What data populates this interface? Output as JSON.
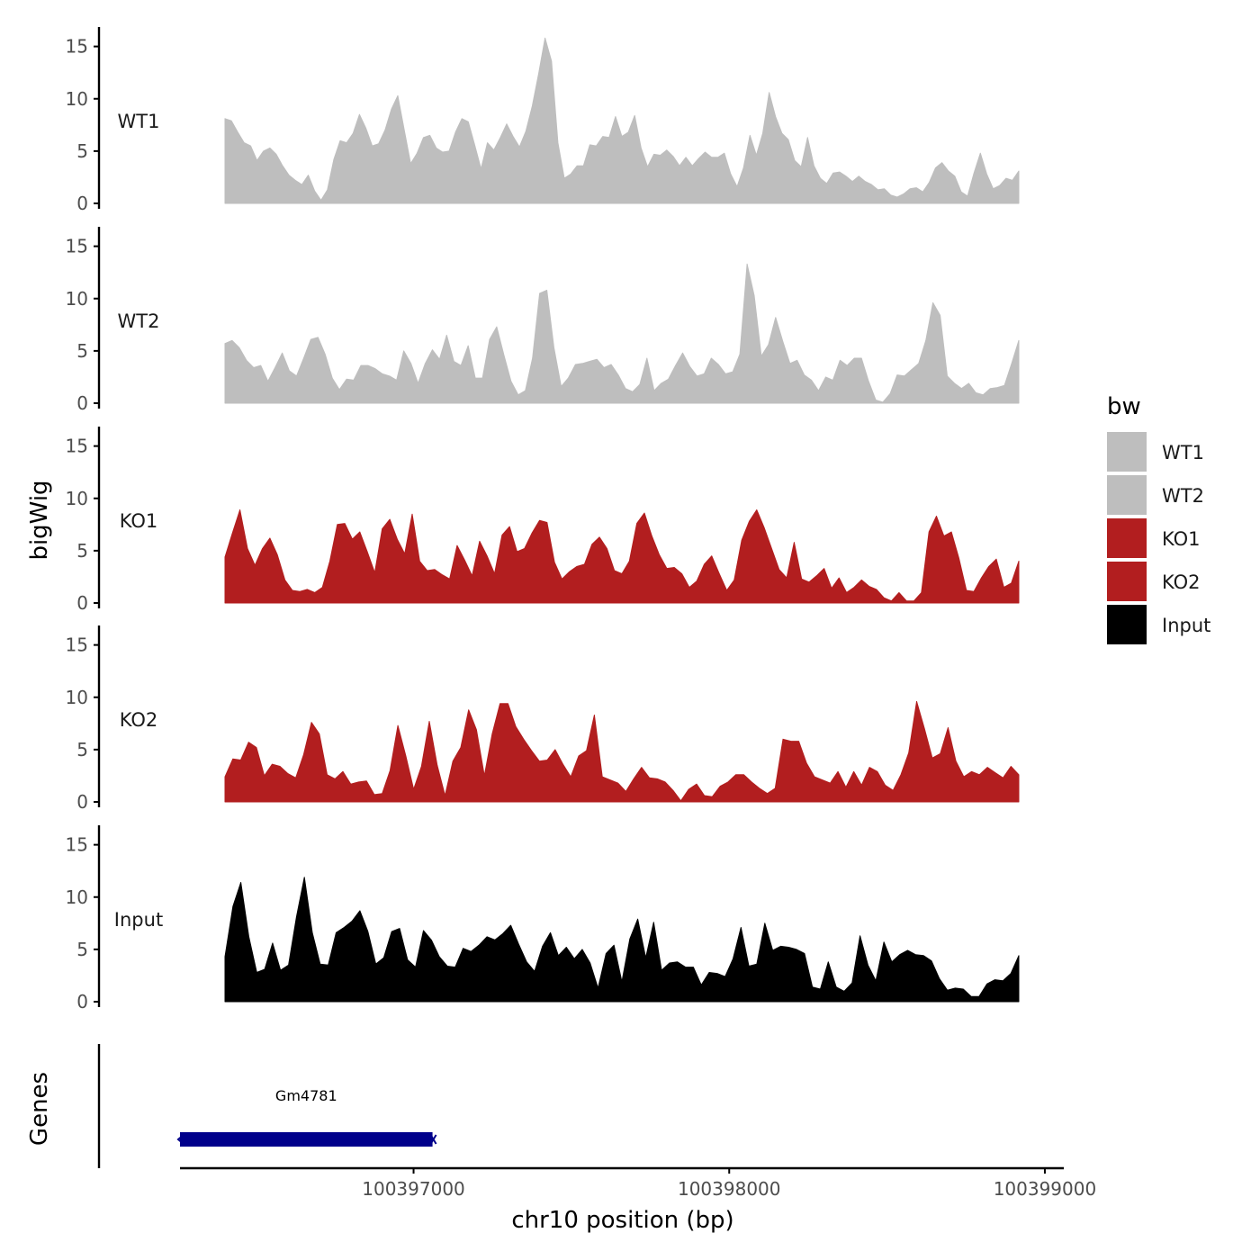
{
  "chart_data": {
    "type": "area",
    "ylabel": "bigWig",
    "xlabel": "chr10 position (bp)",
    "ylim": [
      0,
      16
    ],
    "yticks": [
      0,
      5,
      10,
      15
    ],
    "xlim": [
      100396260,
      100399060
    ],
    "xticks": [
      100397000,
      100398000,
      100399000
    ],
    "xtick_labels": [
      "100397000",
      "100398000",
      "100399000"
    ],
    "legend": {
      "title": "bw",
      "placement": "right",
      "entries": [
        {
          "label": "WT1",
          "color": "#bebebe"
        },
        {
          "label": "WT2",
          "color": "#bebebe"
        },
        {
          "label": "KO1",
          "color": "#b21e1f"
        },
        {
          "label": "KO2",
          "color": "#b21e1f"
        },
        {
          "label": "Input",
          "color": "#000000"
        }
      ]
    },
    "track_x_range": [
      100396700,
      100399440
    ],
    "series": [
      {
        "name": "WT1",
        "color": "#bebebe",
        "values": [
          8.1,
          7.9,
          6.8,
          5.8,
          5.5,
          4.1,
          5.0,
          5.3,
          4.7,
          3.6,
          2.7,
          2.2,
          1.8,
          2.7,
          1.2,
          0.3,
          1.3,
          4.2,
          6.0,
          5.8,
          6.7,
          8.5,
          7.2,
          5.5,
          5.7,
          7.0,
          9.0,
          10.3,
          7.0,
          3.8,
          4.8,
          6.3,
          6.5,
          5.3,
          4.9,
          5.0,
          6.8,
          8.1,
          7.8,
          5.6,
          3.3,
          5.8,
          5.1,
          6.3,
          7.6,
          6.4,
          5.4,
          6.9,
          9.3,
          12.4,
          15.8,
          13.6,
          5.8,
          2.4,
          2.8,
          3.6,
          3.6,
          5.6,
          5.5,
          6.4,
          6.3,
          8.3,
          6.4,
          6.8,
          8.4,
          5.3,
          3.5,
          4.7,
          4.6,
          5.1,
          4.5,
          3.6,
          4.4,
          3.6,
          4.3,
          4.9,
          4.4,
          4.4,
          4.8,
          2.8,
          1.6,
          3.4,
          6.5,
          4.6,
          6.7,
          10.6,
          8.3,
          6.7,
          6.1,
          4.1,
          3.5,
          6.3,
          3.6,
          2.4,
          1.9,
          2.9,
          3.0,
          2.6,
          2.1,
          2.6,
          2.1,
          1.8,
          1.3,
          1.4,
          0.8,
          0.6,
          0.9,
          1.4,
          1.5,
          1.1,
          2.0,
          3.4,
          3.9,
          3.1,
          2.6,
          1.1,
          0.7,
          2.9,
          4.8,
          2.8,
          1.4,
          1.7,
          2.4,
          2.2,
          3.1
        ]
      },
      {
        "name": "WT2",
        "color": "#bebebe",
        "values": [
          5.7,
          6.0,
          5.3,
          4.1,
          3.4,
          3.6,
          2.1,
          3.4,
          4.8,
          3.1,
          2.6,
          4.3,
          6.1,
          6.3,
          4.7,
          2.4,
          1.3,
          2.3,
          2.2,
          3.6,
          3.6,
          3.3,
          2.8,
          2.6,
          2.2,
          5.0,
          3.8,
          1.9,
          3.8,
          5.1,
          4.2,
          6.5,
          4.0,
          3.6,
          5.5,
          2.4,
          2.4,
          6.1,
          7.3,
          4.6,
          2.1,
          0.8,
          1.2,
          4.3,
          10.5,
          10.8,
          5.3,
          1.6,
          2.4,
          3.7,
          3.8,
          4.0,
          4.2,
          3.4,
          3.7,
          2.7,
          1.4,
          1.1,
          1.8,
          4.3,
          1.2,
          1.9,
          2.3,
          3.6,
          4.8,
          3.5,
          2.6,
          2.8,
          4.3,
          3.7,
          2.8,
          3.0,
          4.7,
          13.3,
          10.3,
          4.5,
          5.6,
          8.2,
          5.9,
          3.8,
          4.1,
          2.7,
          2.2,
          1.2,
          2.5,
          2.2,
          4.1,
          3.6,
          4.3,
          4.3,
          2.1,
          0.3,
          0.1,
          0.9,
          2.7,
          2.6,
          3.2,
          3.8,
          6.0,
          9.6,
          8.4,
          2.6,
          1.9,
          1.4,
          1.9,
          1.0,
          0.8,
          1.4,
          1.5,
          1.7,
          3.8,
          6.0
        ]
      },
      {
        "name": "KO1",
        "color": "#b21e1f",
        "values": [
          4.4,
          6.7,
          8.9,
          5.2,
          3.6,
          5.2,
          6.2,
          4.6,
          2.2,
          1.2,
          1.1,
          1.3,
          1.0,
          1.5,
          4.0,
          7.5,
          7.6,
          6.1,
          6.8,
          4.9,
          2.9,
          7.1,
          8.0,
          6.1,
          4.7,
          8.5,
          4.0,
          3.1,
          3.2,
          2.7,
          2.3,
          5.5,
          4.1,
          2.6,
          5.9,
          4.5,
          2.8,
          6.5,
          7.3,
          4.9,
          5.2,
          6.7,
          7.9,
          7.7,
          3.9,
          2.3,
          3.0,
          3.5,
          3.7,
          5.6,
          6.3,
          5.2,
          3.1,
          2.8,
          4.0,
          7.6,
          8.6,
          6.4,
          4.6,
          3.3,
          3.4,
          2.8,
          1.5,
          2.1,
          3.7,
          4.5,
          2.8,
          1.2,
          2.2,
          6.0,
          7.8,
          8.9,
          7.2,
          5.2,
          3.2,
          2.4,
          5.8,
          2.3,
          2.0,
          2.6,
          3.3,
          1.4,
          2.4,
          1.0,
          1.5,
          2.2,
          1.6,
          1.3,
          0.5,
          0.2,
          1.0,
          0.2,
          0.2,
          1.0,
          6.8,
          8.3,
          6.4,
          6.8,
          4.3,
          1.2,
          1.1,
          2.4,
          3.5,
          4.2,
          1.5,
          1.9,
          4.0
        ]
      },
      {
        "name": "KO2",
        "color": "#b21e1f",
        "values": [
          2.4,
          4.1,
          4.0,
          5.7,
          5.2,
          2.5,
          3.6,
          3.4,
          2.7,
          2.3,
          4.5,
          7.6,
          6.5,
          2.6,
          2.2,
          2.9,
          1.7,
          1.9,
          2.0,
          0.7,
          0.8,
          3.0,
          7.3,
          4.4,
          1.2,
          3.4,
          7.7,
          3.5,
          0.6,
          3.9,
          5.2,
          8.8,
          6.9,
          2.5,
          6.5,
          9.4,
          9.4,
          7.2,
          6.0,
          4.9,
          3.9,
          4.0,
          5.0,
          3.6,
          2.4,
          4.4,
          4.9,
          8.3,
          2.4,
          2.1,
          1.8,
          1.0,
          2.2,
          3.3,
          2.3,
          2.2,
          1.9,
          1.1,
          0.1,
          1.2,
          1.7,
          0.6,
          0.5,
          1.5,
          1.9,
          2.6,
          2.6,
          1.9,
          1.3,
          0.8,
          1.3,
          6.0,
          5.8,
          5.8,
          3.7,
          2.4,
          2.1,
          1.8,
          2.9,
          1.4,
          2.9,
          1.6,
          3.3,
          2.9,
          1.6,
          1.1,
          2.6,
          4.7,
          9.6,
          7.0,
          4.2,
          4.6,
          7.1,
          3.9,
          2.4,
          2.9,
          2.6,
          3.3,
          2.8,
          2.3,
          3.4,
          2.6
        ]
      },
      {
        "name": "Input",
        "color": "#000000",
        "values": [
          4.3,
          9.1,
          11.4,
          6.2,
          2.8,
          3.1,
          5.6,
          3.0,
          3.5,
          8.1,
          11.9,
          6.6,
          3.6,
          3.5,
          6.6,
          7.1,
          7.7,
          8.7,
          6.7,
          3.6,
          4.2,
          6.7,
          7.0,
          4.0,
          3.3,
          6.8,
          5.9,
          4.3,
          3.4,
          3.3,
          5.1,
          4.8,
          5.4,
          6.2,
          5.9,
          6.5,
          7.3,
          5.5,
          3.8,
          2.9,
          5.3,
          6.6,
          4.4,
          5.2,
          4.1,
          5.0,
          3.7,
          1.3,
          4.6,
          5.4,
          1.9,
          6.0,
          7.9,
          4.2,
          7.6,
          3.0,
          3.7,
          3.8,
          3.3,
          3.3,
          1.6,
          2.8,
          2.7,
          2.4,
          4.1,
          7.1,
          3.4,
          3.6,
          7.5,
          4.9,
          5.3,
          5.2,
          5.0,
          4.6,
          1.4,
          1.2,
          3.8,
          1.4,
          1.0,
          1.8,
          6.3,
          3.5,
          2.0,
          5.7,
          3.8,
          4.5,
          4.9,
          4.5,
          4.4,
          3.9,
          2.2,
          1.1,
          1.3,
          1.2,
          0.5,
          0.5,
          1.7,
          2.1,
          2.0,
          2.7,
          4.4
        ]
      }
    ],
    "genes": [
      {
        "name": "Gm4781",
        "start": 100396260,
        "end": 100397060,
        "color": "#00008b"
      }
    ],
    "genes_track_label": "Genes"
  }
}
